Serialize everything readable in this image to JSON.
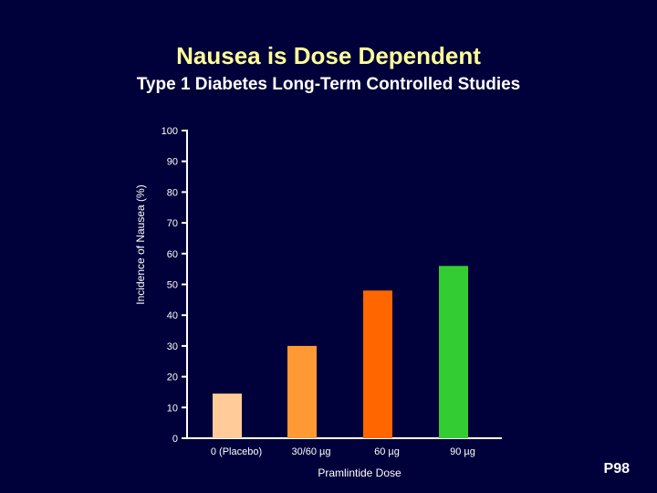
{
  "slide": {
    "title": "Nausea is Dose Dependent",
    "subtitle": "Type 1 Diabetes Long-Term Controlled Studies",
    "code": "P98"
  },
  "chart_data": {
    "type": "bar",
    "categories": [
      "0 (Placebo)",
      "30/60 µg",
      "60 µg",
      "90 µg"
    ],
    "values": [
      14.5,
      30,
      48,
      56
    ],
    "colors": [
      "#ffcc99",
      "#ff9933",
      "#ff6600",
      "#33cc33"
    ],
    "xlabel": "Pramlintide Dose",
    "ylabel": "Incidence of Nausea (%)",
    "ylim": [
      0,
      100
    ],
    "yticks": [
      0,
      10,
      20,
      30,
      40,
      50,
      60,
      70,
      80,
      90,
      100
    ],
    "grid": false,
    "axis_color": "#ffffff"
  }
}
